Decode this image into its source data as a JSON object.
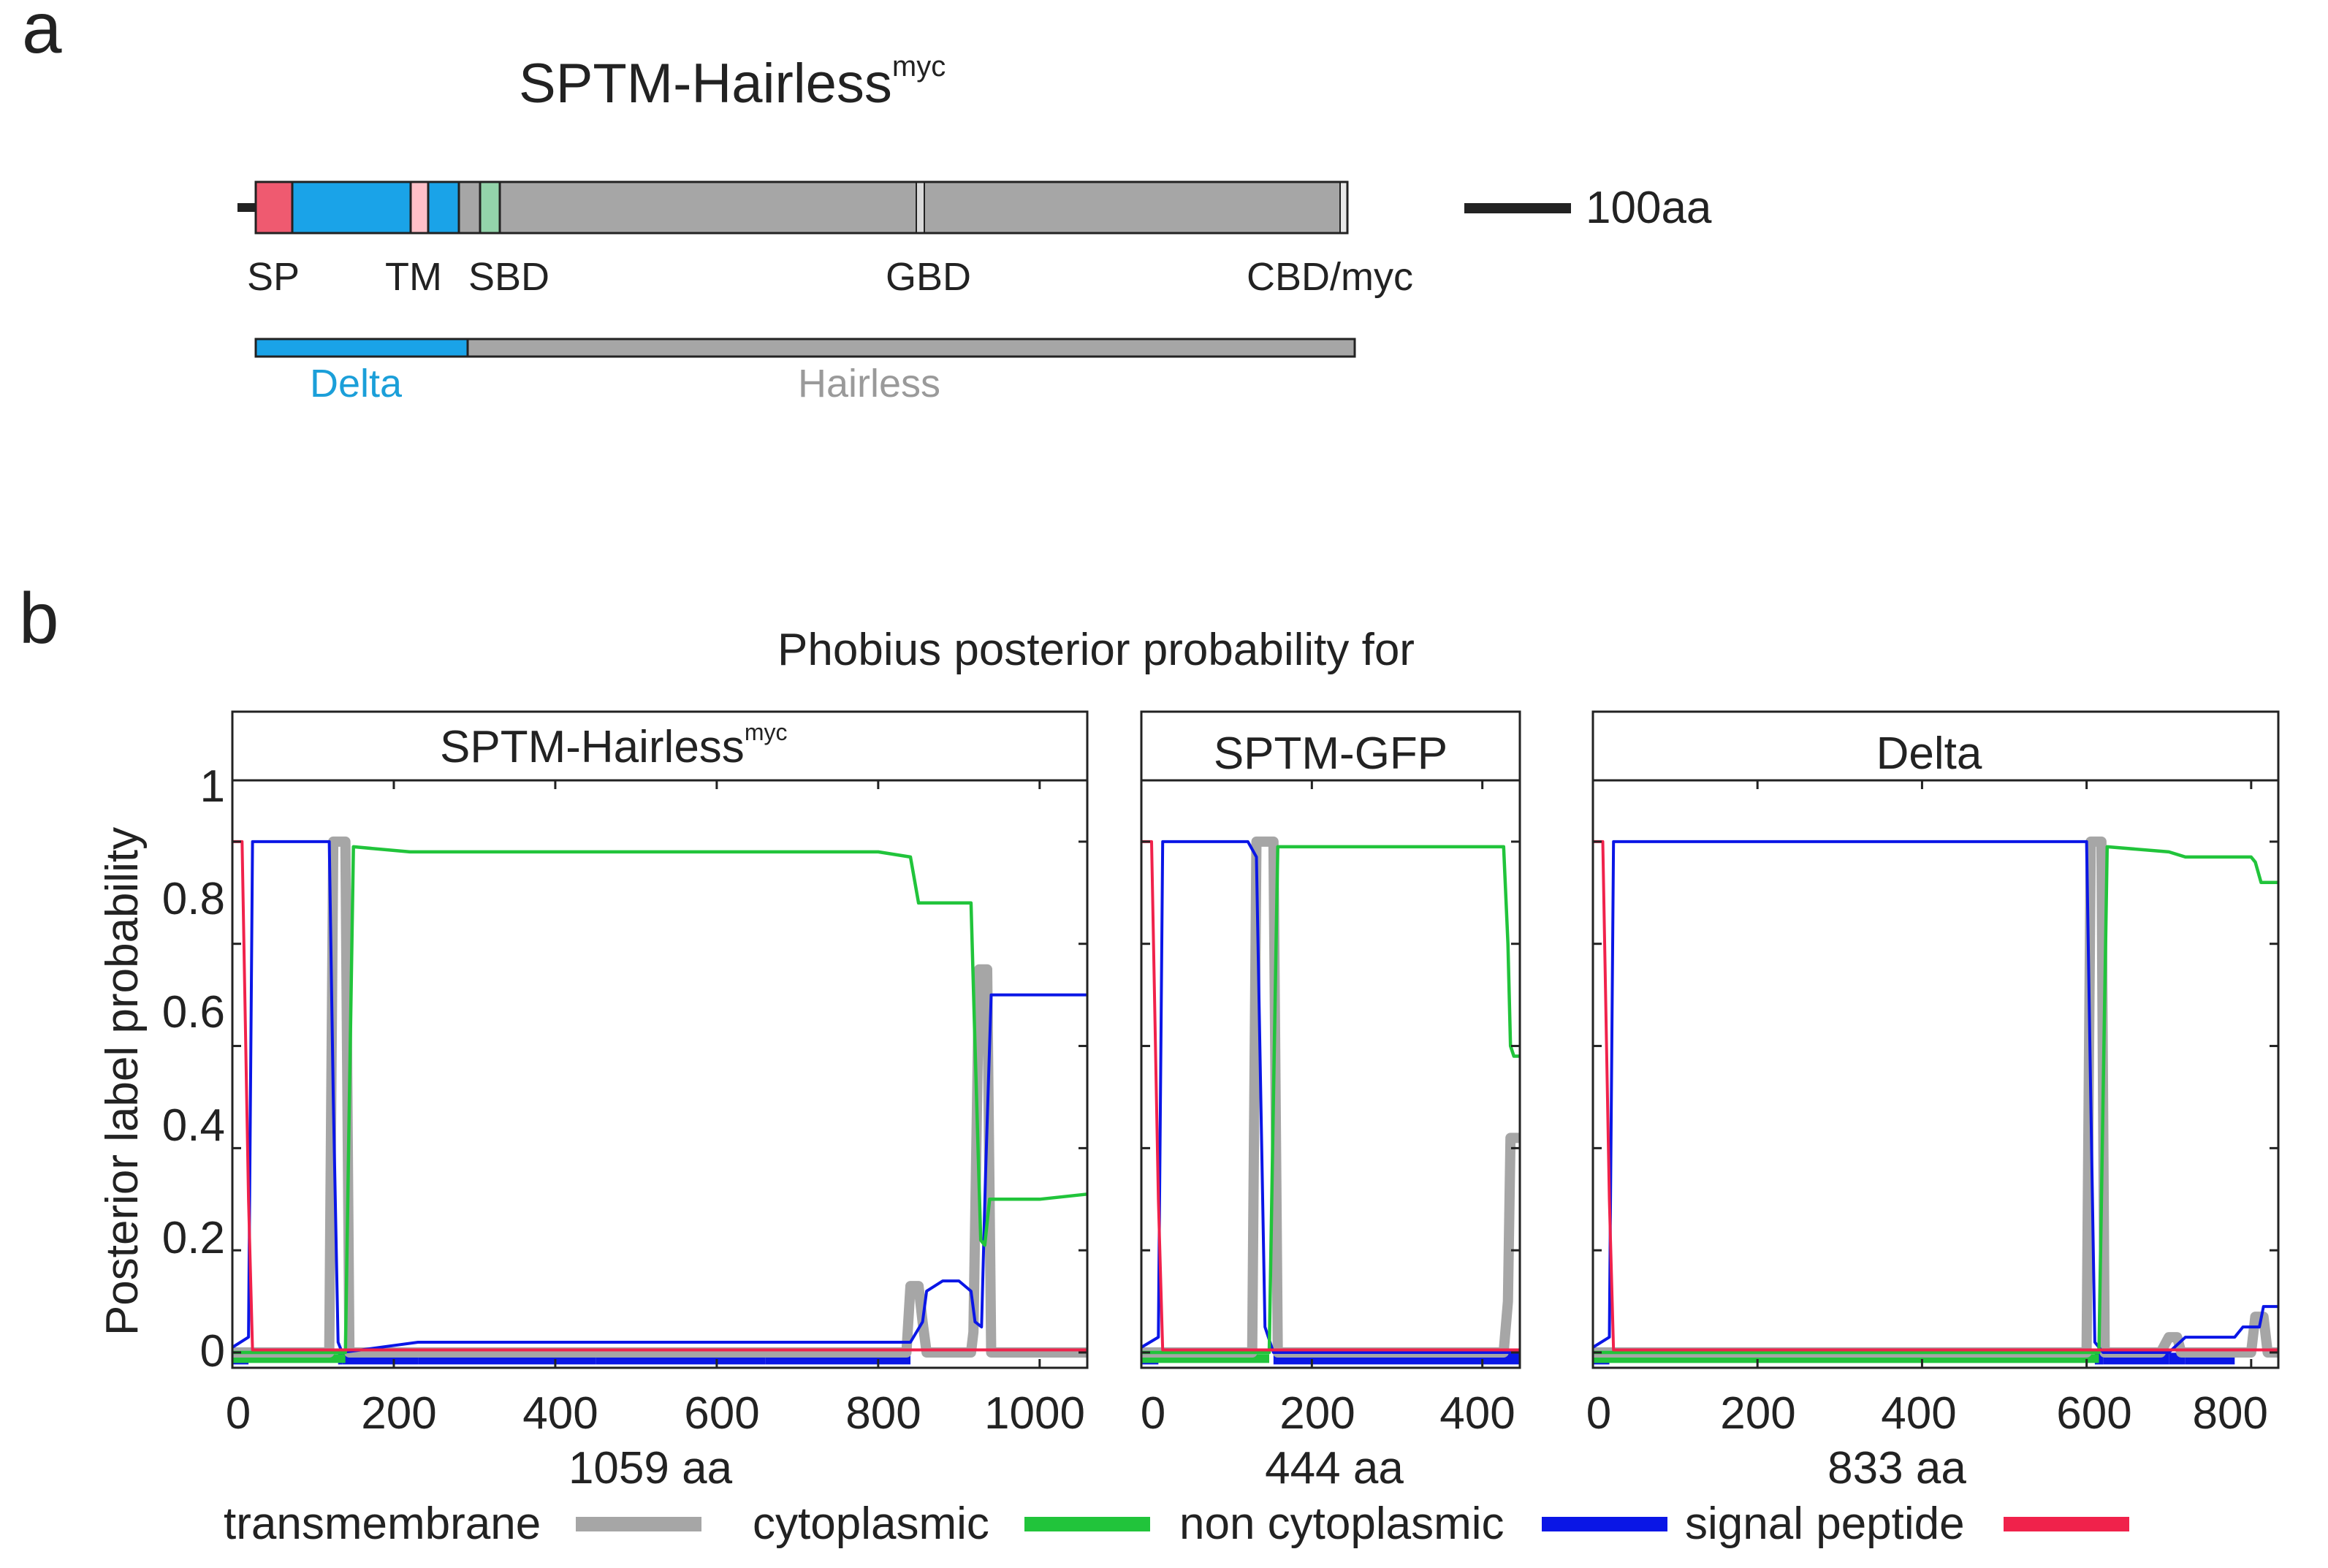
{
  "panel_a": {
    "label": "a",
    "title": "SPTM-Hairless",
    "title_sup": "myc",
    "domains": [
      "SP",
      "TM",
      "SBD",
      "GBD",
      "CBD/myc"
    ],
    "scale_bar_label": "100aa",
    "origin_labels": [
      {
        "name": "Delta",
        "color": "#1b9fd9"
      },
      {
        "name": "Hairless",
        "color": "#9a9a9a"
      }
    ],
    "colors": {
      "sp": "#ef5a70",
      "delta": "#1aa3e8",
      "tm": "#ffc0c8",
      "hairless": "#a6a6a6",
      "sbd": "#93d3aa"
    }
  },
  "panel_b": {
    "label": "b",
    "title": "Phobius posterior probability for",
    "ylabel": "Posterior label probability"
  },
  "legend": [
    {
      "name": "transmembrane",
      "color": "#a6a6a6"
    },
    {
      "name": "cytoplasmic",
      "color": "#21c43b"
    },
    {
      "name": "non cytoplasmic",
      "color": "#0a16e6"
    },
    {
      "name": "signal peptide",
      "color": "#f0224b"
    }
  ],
  "chart_data": [
    {
      "type": "line",
      "title": "SPTM-Hairless",
      "title_sup": "myc",
      "xlabel": "1059 aa",
      "ylabel": "Posterior label probability",
      "xlim": [
        0,
        1059
      ],
      "ylim": [
        -0.03,
        1.12
      ],
      "xticks": [
        0,
        200,
        400,
        600,
        800,
        1000
      ],
      "yticks": [
        0,
        0.2,
        0.4,
        0.6,
        0.8,
        1
      ],
      "ytick_labels": [
        "0",
        "0.2",
        "0.4",
        "0.6",
        "0.8",
        "1"
      ],
      "series": [
        {
          "name": "signal peptide",
          "x": [
            0,
            12,
            20,
            25,
            1059
          ],
          "y": [
            1,
            1,
            0.3,
            0.005,
            0.005
          ]
        },
        {
          "name": "non cytoplasmic",
          "x": [
            0,
            20,
            25,
            120,
            125,
            131,
            136,
            230,
            450,
            660,
            840,
            855,
            860,
            880,
            900,
            915,
            920,
            928,
            933,
            940,
            1000,
            1059
          ],
          "y": [
            0.01,
            0.03,
            1,
            1,
            0.5,
            0.02,
            0,
            0.02,
            0.02,
            0.02,
            0.02,
            0.06,
            0.12,
            0.14,
            0.14,
            0.12,
            0.06,
            0.05,
            0.35,
            0.7,
            0.7,
            0.7
          ]
        },
        {
          "name": "cytoplasmic",
          "x": [
            0,
            140,
            145,
            150,
            220,
            800,
            840,
            850,
            915,
            920,
            927,
            932,
            938,
            1000,
            1059
          ],
          "y": [
            0,
            0,
            0.5,
            0.99,
            0.98,
            0.98,
            0.97,
            0.88,
            0.88,
            0.6,
            0.22,
            0.21,
            0.3,
            0.3,
            0.31
          ]
        },
        {
          "name": "transmembrane",
          "x": [
            0,
            120,
            125,
            140,
            145,
            230,
            835,
            840,
            850,
            855,
            860,
            915,
            918,
            925,
            935,
            940,
            1059
          ],
          "y": [
            0,
            0,
            1,
            1,
            0,
            0,
            0,
            0.13,
            0.13,
            0.06,
            0,
            0,
            0.04,
            0.75,
            0.75,
            0,
            0
          ]
        }
      ]
    },
    {
      "type": "line",
      "title": "SPTM-GFP",
      "xlabel": "444 aa",
      "xlim": [
        0,
        444
      ],
      "ylim": [
        -0.03,
        1.12
      ],
      "xticks": [
        0,
        200,
        400
      ],
      "yticks": [
        0,
        0.2,
        0.4,
        0.6,
        0.8,
        1
      ],
      "series": [
        {
          "name": "signal peptide",
          "x": [
            0,
            12,
            20,
            25,
            444
          ],
          "y": [
            1,
            1,
            0.3,
            0.005,
            0.005
          ]
        },
        {
          "name": "non cytoplasmic",
          "x": [
            0,
            20,
            25,
            125,
            135,
            145,
            155,
            444
          ],
          "y": [
            0.01,
            0.03,
            1,
            1,
            0.97,
            0.05,
            0,
            0
          ]
        },
        {
          "name": "cytoplasmic",
          "x": [
            0,
            150,
            155,
            160,
            230,
            425,
            430,
            433,
            437,
            444
          ],
          "y": [
            0,
            0,
            0.5,
            0.99,
            0.99,
            0.99,
            0.8,
            0.6,
            0.58,
            0.58
          ]
        },
        {
          "name": "transmembrane",
          "x": [
            0,
            130,
            135,
            155,
            160,
            425,
            430,
            433,
            444
          ],
          "y": [
            0,
            0,
            1,
            1,
            0,
            0,
            0.1,
            0.42,
            0.42
          ]
        }
      ]
    },
    {
      "type": "line",
      "title": "Delta",
      "xlabel": "833 aa",
      "xlim": [
        0,
        833
      ],
      "ylim": [
        -0.03,
        1.12
      ],
      "xticks": [
        0,
        200,
        400,
        600,
        800
      ],
      "yticks": [
        0,
        0.2,
        0.4,
        0.6,
        0.8,
        1
      ],
      "series": [
        {
          "name": "signal peptide",
          "x": [
            0,
            12,
            20,
            25,
            833
          ],
          "y": [
            1,
            1,
            0.3,
            0.005,
            0.005
          ]
        },
        {
          "name": "non cytoplasmic",
          "x": [
            0,
            20,
            25,
            600,
            605,
            610,
            620,
            700,
            720,
            780,
            790,
            810,
            815,
            833
          ],
          "y": [
            0.01,
            0.03,
            1,
            1,
            0.5,
            0.02,
            0,
            0,
            0.03,
            0.03,
            0.05,
            0.05,
            0.09,
            0.09
          ]
        },
        {
          "name": "cytoplasmic",
          "x": [
            0,
            615,
            620,
            625,
            700,
            720,
            800,
            805,
            812,
            833
          ],
          "y": [
            0,
            0,
            0.5,
            0.99,
            0.98,
            0.97,
            0.97,
            0.96,
            0.92,
            0.92
          ]
        },
        {
          "name": "transmembrane",
          "x": [
            0,
            600,
            605,
            618,
            622,
            690,
            700,
            710,
            715,
            800,
            805,
            815,
            820,
            833
          ],
          "y": [
            0,
            0,
            1,
            1,
            0,
            0,
            0.03,
            0.03,
            0,
            0,
            0.07,
            0.07,
            0,
            0
          ]
        }
      ]
    }
  ]
}
